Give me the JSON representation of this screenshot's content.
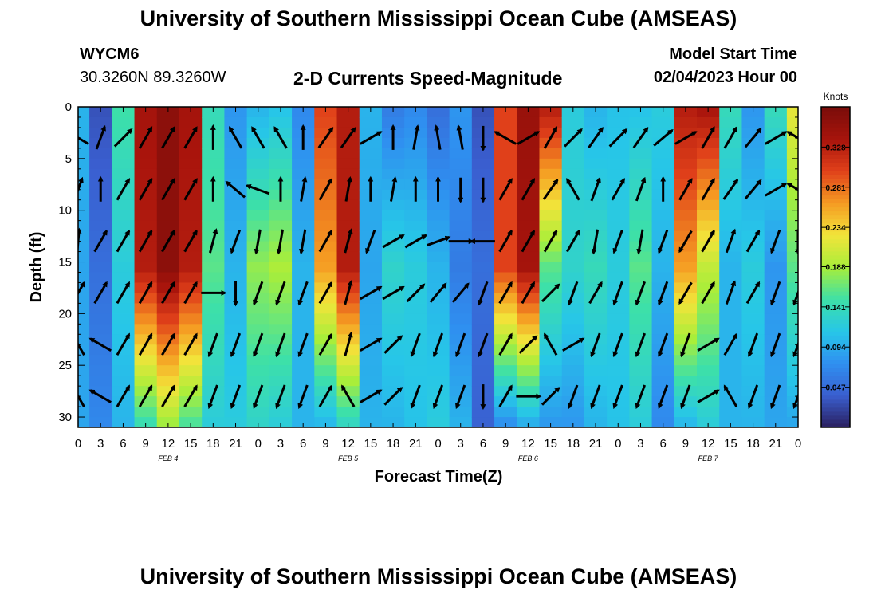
{
  "header": {
    "title": "University of Southern Mississippi Ocean Cube (AMSEAS)",
    "station_id": "WYCM6",
    "coordinates": "30.3260N  89.3260W",
    "subtitle": "2-D Currents Speed-Magnitude",
    "model_start_label": "Model Start Time",
    "model_start_value": "02/04/2023 Hour 00"
  },
  "footer": {
    "title": "University of Southern Mississippi Ocean Cube (AMSEAS)"
  },
  "chart_data": {
    "type": "heatmap",
    "title": "2-D Currents Speed-Magnitude",
    "xlabel": "Forecast Time(Z)",
    "ylabel": "Depth (ft)",
    "x_tick_labels": [
      "0",
      "3",
      "6",
      "9",
      "12",
      "15",
      "18",
      "21",
      "0",
      "3",
      "6",
      "9",
      "12",
      "15",
      "18",
      "21",
      "0",
      "3",
      "6",
      "9",
      "12",
      "15",
      "18",
      "21",
      "0",
      "3",
      "6",
      "9",
      "12",
      "15",
      "18",
      "21",
      "0"
    ],
    "x_range_hours": [
      0,
      96
    ],
    "date_labels": [
      {
        "label": "FEB 4",
        "hour": 12
      },
      {
        "label": "FEB 5",
        "hour": 36
      },
      {
        "label": "FEB 6",
        "hour": 60
      },
      {
        "label": "FEB 7",
        "hour": 84
      }
    ],
    "y_ticks": [
      0,
      5,
      10,
      15,
      20,
      25,
      30
    ],
    "y_tick_labels": [
      "0",
      "5",
      "10",
      "15",
      "20",
      "25",
      "30"
    ],
    "y_range_ft": [
      0,
      31
    ],
    "y_inverted": true,
    "colorbar": {
      "unit": "Knots",
      "range": [
        0,
        0.375
      ],
      "tick_values": [
        0.328,
        0.281,
        0.234,
        0.188,
        0.141,
        0.094,
        0.047
      ],
      "tick_labels": [
        "0.328",
        "0.281",
        "0.234",
        "0.188",
        "0.141",
        "0.094",
        "0.047"
      ],
      "colors": [
        "#2a1f5e",
        "#3a5fd0",
        "#2f8ff0",
        "#27c6e8",
        "#3de0a8",
        "#a8ee3a",
        "#f2e43a",
        "#f59a22",
        "#e0401a",
        "#a8140c",
        "#7a0d0a"
      ]
    },
    "depth_levels_ft": [
      0,
      1,
      2,
      3,
      4,
      5,
      6,
      7,
      8,
      9,
      10,
      11,
      12,
      13,
      14,
      15,
      16,
      17,
      18,
      19,
      20,
      21,
      22,
      23,
      24,
      25,
      26,
      27,
      28,
      29,
      30,
      31
    ],
    "speed_profile_hours": [
      0,
      3,
      6,
      9,
      12,
      15,
      18,
      21,
      24,
      27,
      30,
      33,
      36,
      39,
      42,
      45,
      48,
      51,
      54,
      57,
      60,
      63,
      66,
      69,
      72,
      75,
      78,
      81,
      84,
      87,
      90,
      93,
      96
    ],
    "speed_profile_surface_knots": [
      0.1,
      0.03,
      0.15,
      0.34,
      0.36,
      0.34,
      0.14,
      0.08,
      0.1,
      0.11,
      0.07,
      0.3,
      0.33,
      0.1,
      0.06,
      0.07,
      0.05,
      0.08,
      0.03,
      0.3,
      0.35,
      0.33,
      0.12,
      0.1,
      0.11,
      0.11,
      0.12,
      0.33,
      0.34,
      0.14,
      0.08,
      0.14,
      0.22
    ],
    "speed_profile_mid_knots": [
      0.09,
      0.05,
      0.12,
      0.33,
      0.36,
      0.33,
      0.16,
      0.1,
      0.18,
      0.19,
      0.1,
      0.26,
      0.33,
      0.09,
      0.13,
      0.12,
      0.1,
      0.06,
      0.05,
      0.3,
      0.34,
      0.16,
      0.13,
      0.14,
      0.12,
      0.16,
      0.1,
      0.26,
      0.2,
      0.1,
      0.12,
      0.08,
      0.16
    ],
    "speed_profile_bottom_knots": [
      0.09,
      0.07,
      0.1,
      0.14,
      0.18,
      0.15,
      0.12,
      0.12,
      0.13,
      0.12,
      0.1,
      0.1,
      0.13,
      0.1,
      0.1,
      0.11,
      0.12,
      0.1,
      0.04,
      0.07,
      0.09,
      0.08,
      0.08,
      0.1,
      0.11,
      0.12,
      0.07,
      0.1,
      0.12,
      0.1,
      0.1,
      0.09,
      0.09
    ],
    "vector_grid_hours": [
      0,
      3,
      6,
      9,
      12,
      15,
      18,
      21,
      24,
      27,
      30,
      33,
      36,
      39,
      42,
      45,
      48,
      51,
      54,
      57,
      60,
      63,
      66,
      69,
      72,
      75,
      78,
      81,
      84,
      87,
      90,
      93,
      96
    ],
    "vector_grid_depths_ft": [
      3,
      8,
      13,
      18,
      23,
      28
    ],
    "vector_directions_deg": [
      [
        300,
        20,
        45,
        30,
        30,
        30,
        0,
        330,
        330,
        330,
        0,
        35,
        35,
        60,
        0,
        10,
        350,
        350,
        180,
        300,
        60,
        30,
        45,
        35,
        45,
        35,
        50,
        60,
        30,
        30,
        40,
        60,
        300
      ],
      [
        20,
        0,
        30,
        30,
        30,
        30,
        0,
        310,
        290,
        0,
        10,
        30,
        10,
        0,
        10,
        0,
        0,
        180,
        180,
        30,
        30,
        35,
        330,
        20,
        30,
        20,
        0,
        30,
        30,
        35,
        40,
        60,
        300
      ],
      [
        5,
        30,
        30,
        30,
        30,
        30,
        15,
        200,
        190,
        190,
        190,
        30,
        15,
        200,
        60,
        60,
        70,
        90,
        270,
        30,
        30,
        30,
        30,
        190,
        200,
        190,
        200,
        210,
        30,
        20,
        30,
        200,
        180
      ],
      [
        30,
        30,
        30,
        30,
        30,
        30,
        90,
        180,
        200,
        200,
        200,
        30,
        15,
        60,
        60,
        45,
        40,
        40,
        200,
        30,
        30,
        45,
        200,
        30,
        200,
        200,
        200,
        210,
        30,
        20,
        30,
        200,
        200
      ],
      [
        330,
        300,
        30,
        30,
        30,
        30,
        200,
        200,
        200,
        200,
        200,
        30,
        15,
        60,
        45,
        200,
        200,
        200,
        200,
        30,
        45,
        330,
        60,
        200,
        200,
        200,
        200,
        200,
        60,
        30,
        200,
        200,
        200
      ],
      [
        330,
        300,
        30,
        30,
        30,
        30,
        200,
        200,
        200,
        200,
        200,
        30,
        330,
        60,
        45,
        200,
        200,
        200,
        180,
        30,
        90,
        45,
        200,
        200,
        200,
        200,
        200,
        200,
        60,
        330,
        200,
        200,
        200
      ]
    ]
  }
}
